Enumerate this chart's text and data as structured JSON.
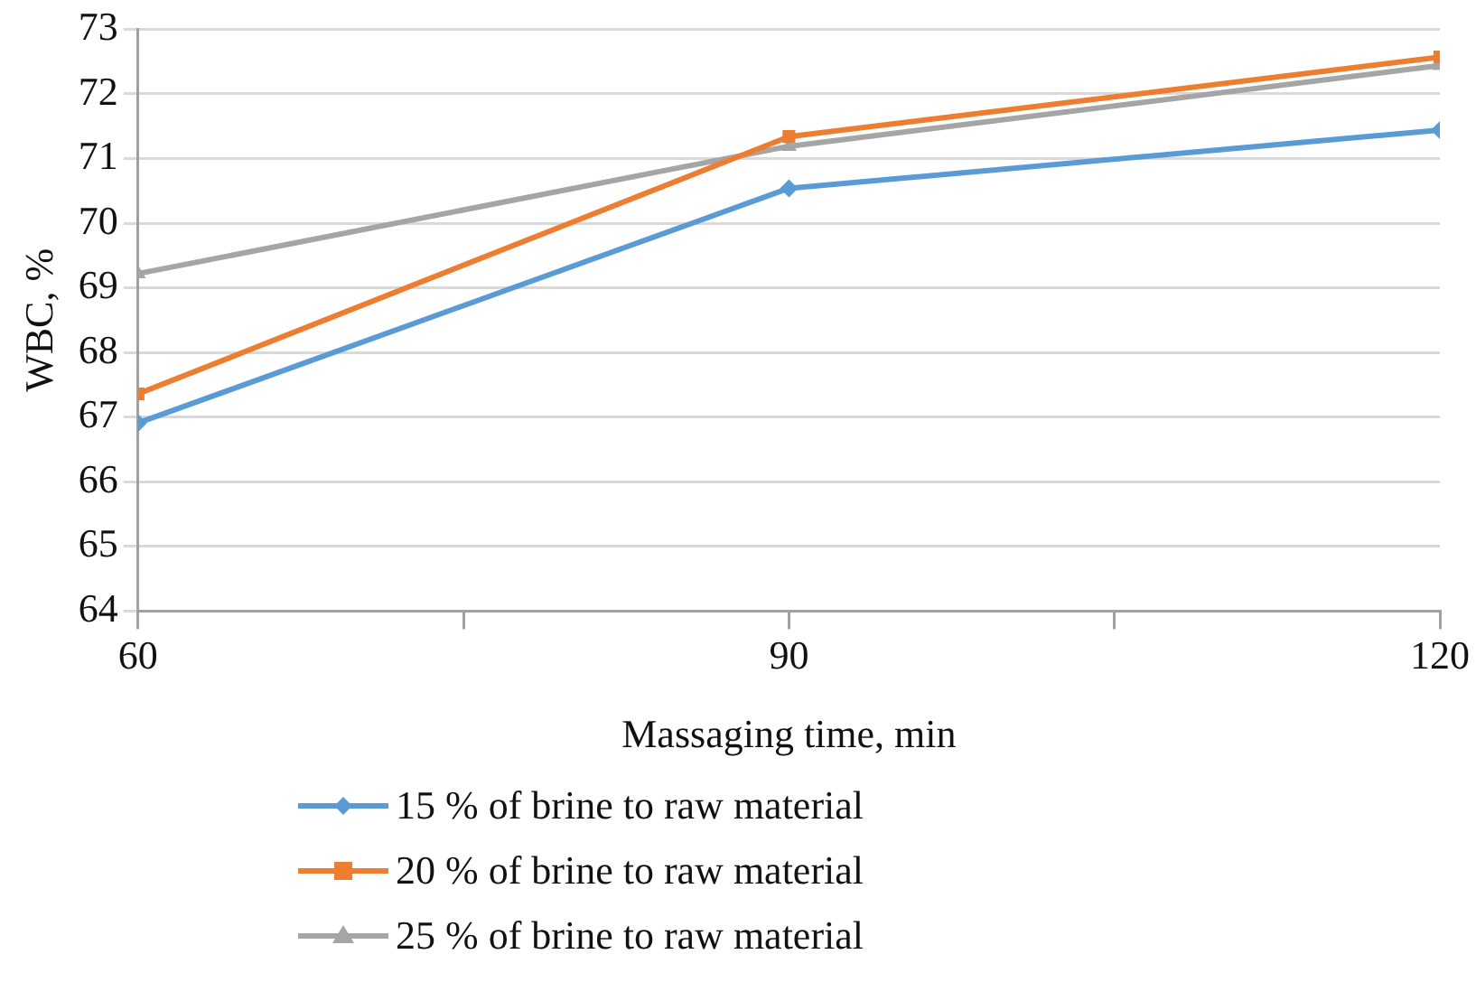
{
  "chart_data": {
    "type": "line",
    "xlabel": "Massaging time, min",
    "ylabel": "WBC, %",
    "x": [
      60,
      90,
      120
    ],
    "series": [
      {
        "name": "15 % of brine to raw material",
        "color": "#5b9bd5",
        "marker": "diamond",
        "values": [
          66.91,
          70.54,
          71.44
        ]
      },
      {
        "name": "20 % of brine to raw material",
        "color": "#ed7d31",
        "marker": "square",
        "values": [
          67.36,
          71.34,
          72.57
        ]
      },
      {
        "name": "25 % of brine to raw material",
        "color": "#a5a5a5",
        "marker": "triangle",
        "values": [
          69.22,
          71.19,
          72.44
        ]
      }
    ],
    "xlim": [
      60,
      120
    ],
    "xticks": [
      60,
      {
        "value": 75,
        "label": null
      },
      90,
      {
        "value": 105,
        "label": null
      },
      120
    ],
    "ylim": [
      64,
      73
    ],
    "yticks": [
      64,
      65,
      66,
      67,
      68,
      69,
      70,
      71,
      72,
      73
    ],
    "grid": "y",
    "legend": "bottom",
    "line_style": "solid"
  }
}
